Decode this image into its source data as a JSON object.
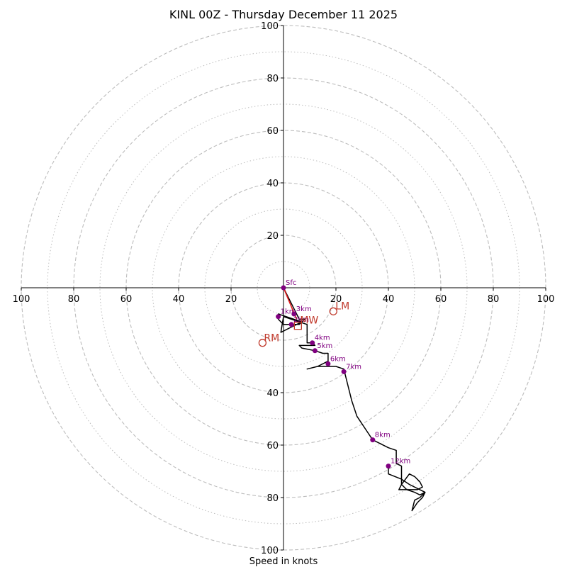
{
  "chart_data": {
    "type": "hodograph",
    "title": "KINL 00Z - Thursday December 11 2025",
    "xlabel": "Speed in knots",
    "range": [
      -100,
      100
    ],
    "ring_major": [
      20,
      40,
      60,
      80,
      100
    ],
    "ring_minor": [
      10,
      30,
      50,
      70,
      90
    ],
    "x_ticks": [
      {
        "v": -100,
        "label": "100"
      },
      {
        "v": -80,
        "label": "80"
      },
      {
        "v": -60,
        "label": "60"
      },
      {
        "v": -40,
        "label": "40"
      },
      {
        "v": -20,
        "label": "20"
      },
      {
        "v": 20,
        "label": "20"
      },
      {
        "v": 40,
        "label": "40"
      },
      {
        "v": 60,
        "label": "60"
      },
      {
        "v": 80,
        "label": "80"
      },
      {
        "v": 100,
        "label": "100"
      }
    ],
    "y_ticks": [
      {
        "v": 100,
        "label": "100"
      },
      {
        "v": 80,
        "label": "80"
      },
      {
        "v": 60,
        "label": "60"
      },
      {
        "v": 40,
        "label": "40"
      },
      {
        "v": 20,
        "label": "20"
      },
      {
        "v": -40,
        "label": "40"
      },
      {
        "v": -60,
        "label": "60"
      },
      {
        "v": -80,
        "label": "80"
      },
      {
        "v": -100,
        "label": "100"
      }
    ],
    "trace": [
      [
        0,
        0
      ],
      [
        1,
        -2
      ],
      [
        2,
        -4
      ],
      [
        3,
        -6
      ],
      [
        4,
        -8
      ],
      [
        5,
        -10
      ],
      [
        6,
        -12
      ],
      [
        8,
        -12
      ],
      [
        6,
        -14
      ],
      [
        3,
        -14
      ],
      [
        0,
        -14
      ],
      [
        -2,
        -12
      ],
      [
        -2,
        -10
      ],
      [
        4,
        -12
      ],
      [
        7,
        -13
      ],
      [
        5,
        -14
      ],
      [
        3,
        -15
      ],
      [
        1,
        -16
      ],
      [
        -1,
        -17
      ],
      [
        -0.5,
        -14
      ],
      [
        0,
        -11
      ],
      [
        3,
        -12
      ],
      [
        9,
        -14
      ],
      [
        9,
        -18
      ],
      [
        9,
        -21
      ],
      [
        11,
        -21
      ],
      [
        12,
        -22
      ],
      [
        10,
        -22
      ],
      [
        6,
        -22
      ],
      [
        7,
        -23
      ],
      [
        12,
        -24
      ],
      [
        15,
        -25
      ],
      [
        17,
        -25
      ],
      [
        17,
        -28
      ],
      [
        13,
        -30
      ],
      [
        9,
        -31
      ],
      [
        13,
        -30
      ],
      [
        17,
        -30
      ],
      [
        20,
        -30
      ],
      [
        23,
        -31
      ],
      [
        24,
        -35
      ],
      [
        26,
        -43
      ],
      [
        28,
        -49
      ],
      [
        32,
        -55
      ],
      [
        34,
        -58
      ],
      [
        40,
        -61
      ],
      [
        43,
        -62
      ],
      [
        43,
        -67
      ],
      [
        45,
        -68
      ],
      [
        45,
        -72
      ],
      [
        45,
        -75
      ],
      [
        44,
        -77
      ],
      [
        47,
        -77
      ],
      [
        51,
        -77
      ],
      [
        53,
        -76
      ],
      [
        52,
        -74
      ],
      [
        50,
        -72
      ],
      [
        48,
        -71
      ],
      [
        45,
        -75
      ],
      [
        47,
        -77
      ],
      [
        50,
        -78
      ],
      [
        52,
        -79
      ],
      [
        54,
        -78
      ],
      [
        52,
        -80
      ],
      [
        50,
        -81
      ],
      [
        49,
        -85
      ],
      [
        51,
        -82
      ],
      [
        53,
        -80
      ],
      [
        54,
        -78
      ],
      [
        52,
        -77
      ],
      [
        48,
        -75
      ],
      [
        45,
        -73
      ],
      [
        40,
        -71
      ],
      [
        40,
        -68
      ]
    ],
    "height_points": [
      {
        "label": "Sfc",
        "u": 0,
        "v": 0
      },
      {
        "label": "1km",
        "u": -2,
        "v": -11
      },
      {
        "label": "2km",
        "u": 3,
        "v": -14
      },
      {
        "label": "3km",
        "u": 4,
        "v": -10
      },
      {
        "label": "4km",
        "u": 11,
        "v": -21
      },
      {
        "label": "5km",
        "u": 12,
        "v": -24
      },
      {
        "label": "6km",
        "u": 17,
        "v": -29
      },
      {
        "label": "7km",
        "u": 23,
        "v": -32
      },
      {
        "label": "8km",
        "u": 34,
        "v": -58
      },
      {
        "label": "12km",
        "u": 40,
        "v": -68
      }
    ],
    "shear_vector": {
      "from": [
        0,
        0
      ],
      "to": [
        5,
        -12
      ],
      "color": "#e31a1c"
    },
    "storm_motion": [
      {
        "label": "LM",
        "u": 19,
        "v": -9,
        "marker": "circle",
        "dx": 1,
        "dy": 0
      },
      {
        "label": "RM",
        "u": -8,
        "v": -21,
        "marker": "circle",
        "dx": 0,
        "dy": 1
      },
      {
        "label": "MW",
        "u": 5.5,
        "v": -14.5,
        "marker": "square",
        "dx": 1,
        "dy": 0
      }
    ],
    "colors": {
      "trace": "#000000",
      "points": "#800080",
      "markers": "#c0392b",
      "grid": "#bdbdbd"
    }
  }
}
